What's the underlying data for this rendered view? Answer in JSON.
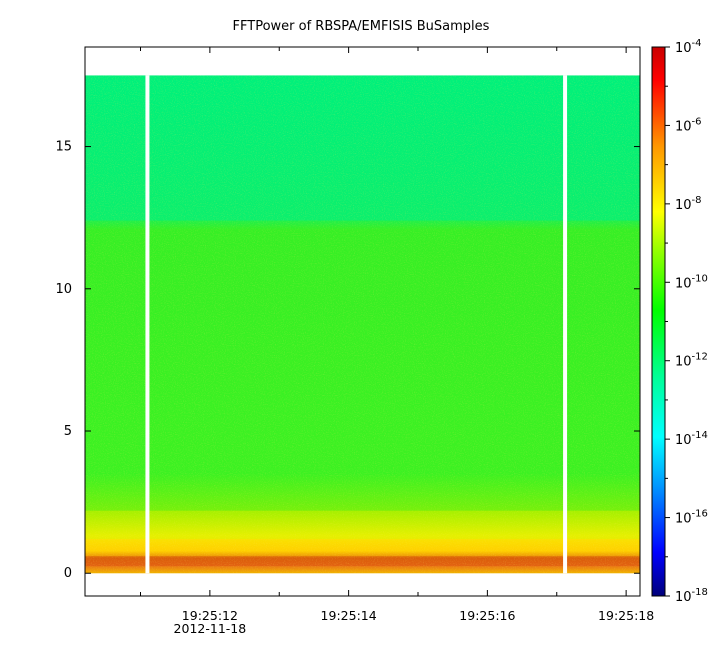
{
  "chart_data": {
    "type": "heatmap",
    "title": "FFTPower of RBSPA/EMFISIS  BuSamples",
    "xlabel": "",
    "ylabel": "",
    "x_ticks": [
      {
        "label": "19:25:12",
        "sublabel": "2012-11-18",
        "t": 12
      },
      {
        "label": "19:25:14",
        "sublabel": "",
        "t": 14
      },
      {
        "label": "19:25:16",
        "sublabel": "",
        "t": 16
      },
      {
        "label": "19:25:18",
        "sublabel": "",
        "t": 18
      }
    ],
    "x_minor_ticks": [
      11,
      13,
      15,
      17
    ],
    "xlim_seconds": [
      10.2,
      18.2
    ],
    "y_ticks": [
      0,
      5,
      10,
      15
    ],
    "ylim": [
      -0.8,
      18.5
    ],
    "data_extent_y": [
      0,
      17.5
    ],
    "gaps_seconds": [
      11.1,
      17.12
    ],
    "colorbar": {
      "scale": "log",
      "range_exponents": [
        -18,
        -4
      ],
      "tick_exponents": [
        -18,
        -16,
        -14,
        -12,
        -10,
        -8,
        -6,
        -4
      ],
      "base": "10",
      "colors": [
        "#00007a",
        "#0000ff",
        "#0096ff",
        "#00ffff",
        "#00ff96",
        "#00ff00",
        "#96ff00",
        "#ffff00",
        "#ff9600",
        "#ff0000",
        "#c80000"
      ]
    },
    "bands": [
      {
        "y_from": 0.0,
        "y_to": 0.25,
        "level": "~1e-8",
        "color": "#f4b000"
      },
      {
        "y_from": 0.25,
        "y_to": 0.6,
        "level": "~1e-7",
        "color": "#e06000"
      },
      {
        "y_from": 0.6,
        "y_to": 1.2,
        "level": "~1e-8",
        "color": "#ffd200"
      },
      {
        "y_from": 1.2,
        "y_to": 2.2,
        "level": "~1e-9",
        "color": "#c8f000"
      },
      {
        "y_from": 2.2,
        "y_to": 12.4,
        "level": "~1e-10",
        "color": "#3cf020"
      },
      {
        "y_from": 12.4,
        "y_to": 17.5,
        "level": "~1e-12",
        "color": "#00f07a"
      }
    ]
  }
}
